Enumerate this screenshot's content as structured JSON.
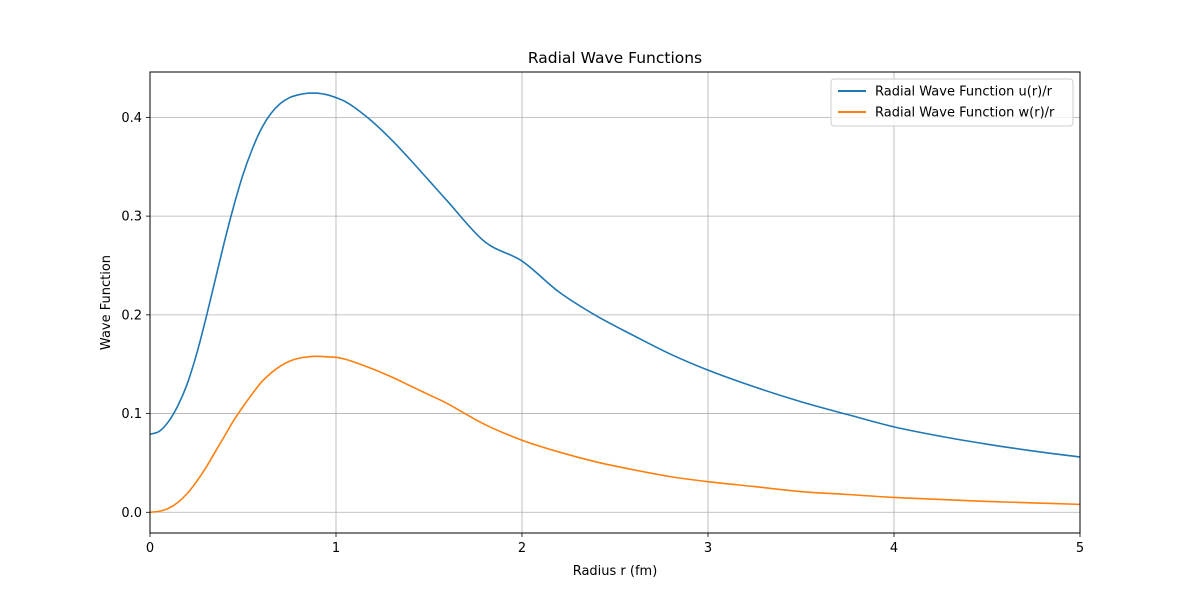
{
  "chart_data": {
    "type": "line",
    "title": "Radial Wave Functions",
    "xlabel": "Radius r (fm)",
    "ylabel": "Wave Function",
    "xlim": [
      0,
      5
    ],
    "ylim": [
      -0.021,
      0.446
    ],
    "xticks": [
      "0",
      "1",
      "2",
      "3",
      "4",
      "5"
    ],
    "yticks": [
      "0.0",
      "0.1",
      "0.2",
      "0.3",
      "0.4"
    ],
    "grid": true,
    "legend_position": "top-right",
    "series": [
      {
        "name": "Radial Wave Function u(r)/r",
        "color": "#1f77b4",
        "x": [
          0,
          0.05,
          0.1,
          0.15,
          0.2,
          0.25,
          0.3,
          0.35,
          0.4,
          0.45,
          0.5,
          0.55,
          0.6,
          0.65,
          0.7,
          0.75,
          0.8,
          0.85,
          0.9,
          0.95,
          1.0,
          1.05,
          1.1,
          1.2,
          1.3,
          1.4,
          1.5,
          1.6,
          1.8,
          2.0,
          2.2,
          2.4,
          2.6,
          2.8,
          3.0,
          3.25,
          3.5,
          3.75,
          4.0,
          4.25,
          4.5,
          4.75,
          5.0
        ],
        "y": [
          0.079,
          0.082,
          0.092,
          0.108,
          0.13,
          0.16,
          0.196,
          0.235,
          0.274,
          0.31,
          0.342,
          0.368,
          0.389,
          0.404,
          0.414,
          0.42,
          0.423,
          0.4245,
          0.4245,
          0.423,
          0.42,
          0.416,
          0.41,
          0.395,
          0.377,
          0.357,
          0.336,
          0.315,
          0.274,
          0.2545,
          0.223,
          0.199,
          0.179,
          0.16,
          0.144,
          0.127,
          0.112,
          0.099,
          0.0865,
          0.077,
          0.069,
          0.062,
          0.056
        ]
      },
      {
        "name": "Radial Wave Function w(r)/r",
        "color": "#ff7f0e",
        "x": [
          0,
          0.05,
          0.1,
          0.15,
          0.2,
          0.25,
          0.3,
          0.35,
          0.4,
          0.45,
          0.5,
          0.55,
          0.6,
          0.65,
          0.7,
          0.75,
          0.8,
          0.85,
          0.9,
          0.95,
          1.0,
          1.05,
          1.1,
          1.2,
          1.3,
          1.4,
          1.5,
          1.6,
          1.8,
          2.0,
          2.2,
          2.4,
          2.6,
          2.8,
          3.0,
          3.25,
          3.5,
          3.75,
          4.0,
          4.25,
          4.5,
          4.75,
          5.0
        ],
        "y": [
          0.0,
          0.001,
          0.004,
          0.01,
          0.019,
          0.031,
          0.045,
          0.061,
          0.077,
          0.093,
          0.107,
          0.12,
          0.132,
          0.141,
          0.148,
          0.153,
          0.156,
          0.1575,
          0.158,
          0.1575,
          0.157,
          0.155,
          0.152,
          0.145,
          0.137,
          0.128,
          0.119,
          0.11,
          0.089,
          0.073,
          0.061,
          0.051,
          0.043,
          0.036,
          0.031,
          0.026,
          0.021,
          0.018,
          0.015,
          0.013,
          0.011,
          0.0095,
          0.008
        ]
      }
    ]
  }
}
